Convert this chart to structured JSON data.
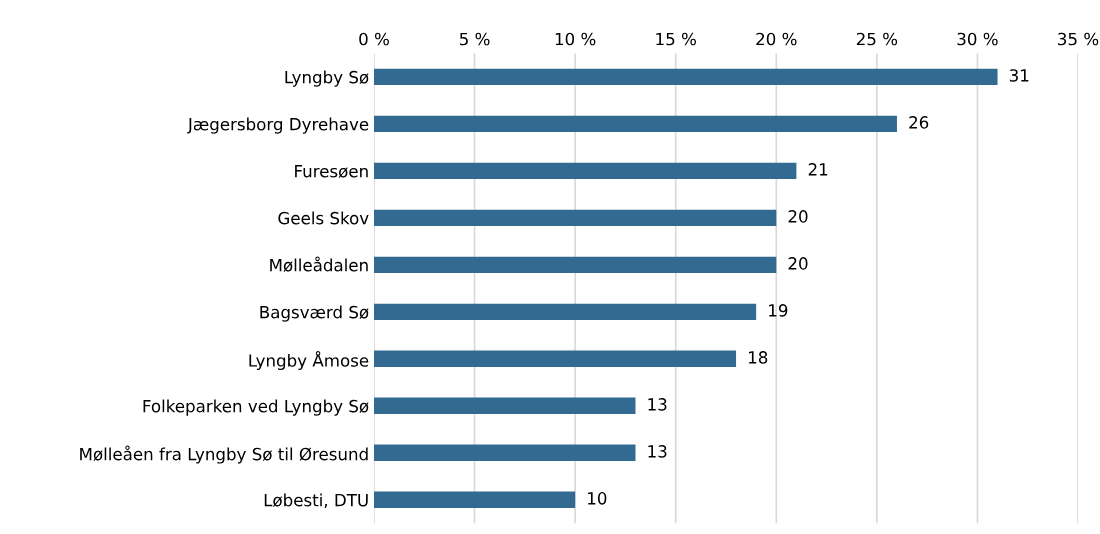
{
  "chart_data": {
    "type": "bar",
    "orientation": "horizontal",
    "categories": [
      "Lyngby Sø",
      "Jægersborg Dyrehave",
      "Furesøen",
      "Geels Skov",
      "Mølleådalen",
      "Bagsværd Sø",
      "Lyngby Åmose",
      "Folkeparken ved Lyngby Sø",
      "Mølleåen fra Lyngby Sø til Øresund",
      "Løbesti, DTU"
    ],
    "values": [
      31,
      26,
      21,
      20,
      20,
      19,
      18,
      13,
      13,
      10
    ],
    "color": "#336a91",
    "data_labels": true,
    "grid": "x",
    "legend": false,
    "xlim": [
      0,
      35
    ],
    "xticks": [
      {
        "value": 0,
        "label": "0 %"
      },
      {
        "value": 5,
        "label": "5 %"
      },
      {
        "value": 10,
        "label": "10 %"
      },
      {
        "value": 15,
        "label": "15 %"
      },
      {
        "value": 20,
        "label": "20 %"
      },
      {
        "value": 25,
        "label": "25 %"
      },
      {
        "value": 30,
        "label": "30 %"
      },
      {
        "value": 35,
        "label": "35 %"
      }
    ]
  }
}
